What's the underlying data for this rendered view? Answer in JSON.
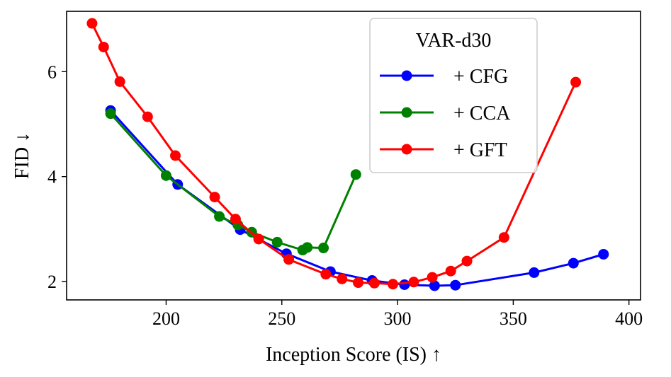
{
  "chart_data": {
    "type": "line",
    "title": "",
    "xlabel": "Inception Score (IS) ↑",
    "ylabel": "FID ↓",
    "xlim": [
      157,
      405
    ],
    "ylim": [
      1.65,
      7.15
    ],
    "xticks": [
      200,
      250,
      300,
      350,
      400
    ],
    "yticks": [
      2,
      4,
      6
    ],
    "grid": false,
    "legend": {
      "title": "VAR-d30",
      "position": "upper-right"
    },
    "series": [
      {
        "name": "+ CFG",
        "color": "#0000ff",
        "points": [
          [
            176,
            5.26
          ],
          [
            205,
            3.85
          ],
          [
            232,
            2.99
          ],
          [
            252,
            2.53
          ],
          [
            271,
            2.19
          ],
          [
            289,
            2.02
          ],
          [
            303,
            1.94
          ],
          [
            316,
            1.92
          ],
          [
            325,
            1.93
          ],
          [
            359,
            2.17
          ],
          [
            376,
            2.35
          ],
          [
            389,
            2.52
          ]
        ]
      },
      {
        "name": "+ CCA",
        "color": "#008000",
        "points": [
          [
            176,
            5.2
          ],
          [
            200,
            4.02
          ],
          [
            223,
            3.24
          ],
          [
            231,
            3.08
          ],
          [
            237,
            2.94
          ],
          [
            248,
            2.75
          ],
          [
            259,
            2.6
          ],
          [
            261,
            2.65
          ],
          [
            268,
            2.64
          ],
          [
            282,
            4.04
          ]
        ]
      },
      {
        "name": "+ GFT",
        "color": "#ff0000",
        "points": [
          [
            168,
            6.92
          ],
          [
            173,
            6.47
          ],
          [
            180,
            5.81
          ],
          [
            192,
            5.14
          ],
          [
            204,
            4.4
          ],
          [
            221,
            3.61
          ],
          [
            230,
            3.19
          ],
          [
            240,
            2.81
          ],
          [
            253,
            2.42
          ],
          [
            269,
            2.14
          ],
          [
            276,
            2.05
          ],
          [
            283,
            1.98
          ],
          [
            290,
            1.97
          ],
          [
            298,
            1.95
          ],
          [
            307,
            1.99
          ],
          [
            315,
            2.08
          ],
          [
            323,
            2.2
          ],
          [
            330,
            2.39
          ],
          [
            346,
            2.84
          ],
          [
            377,
            5.8
          ]
        ]
      }
    ]
  }
}
